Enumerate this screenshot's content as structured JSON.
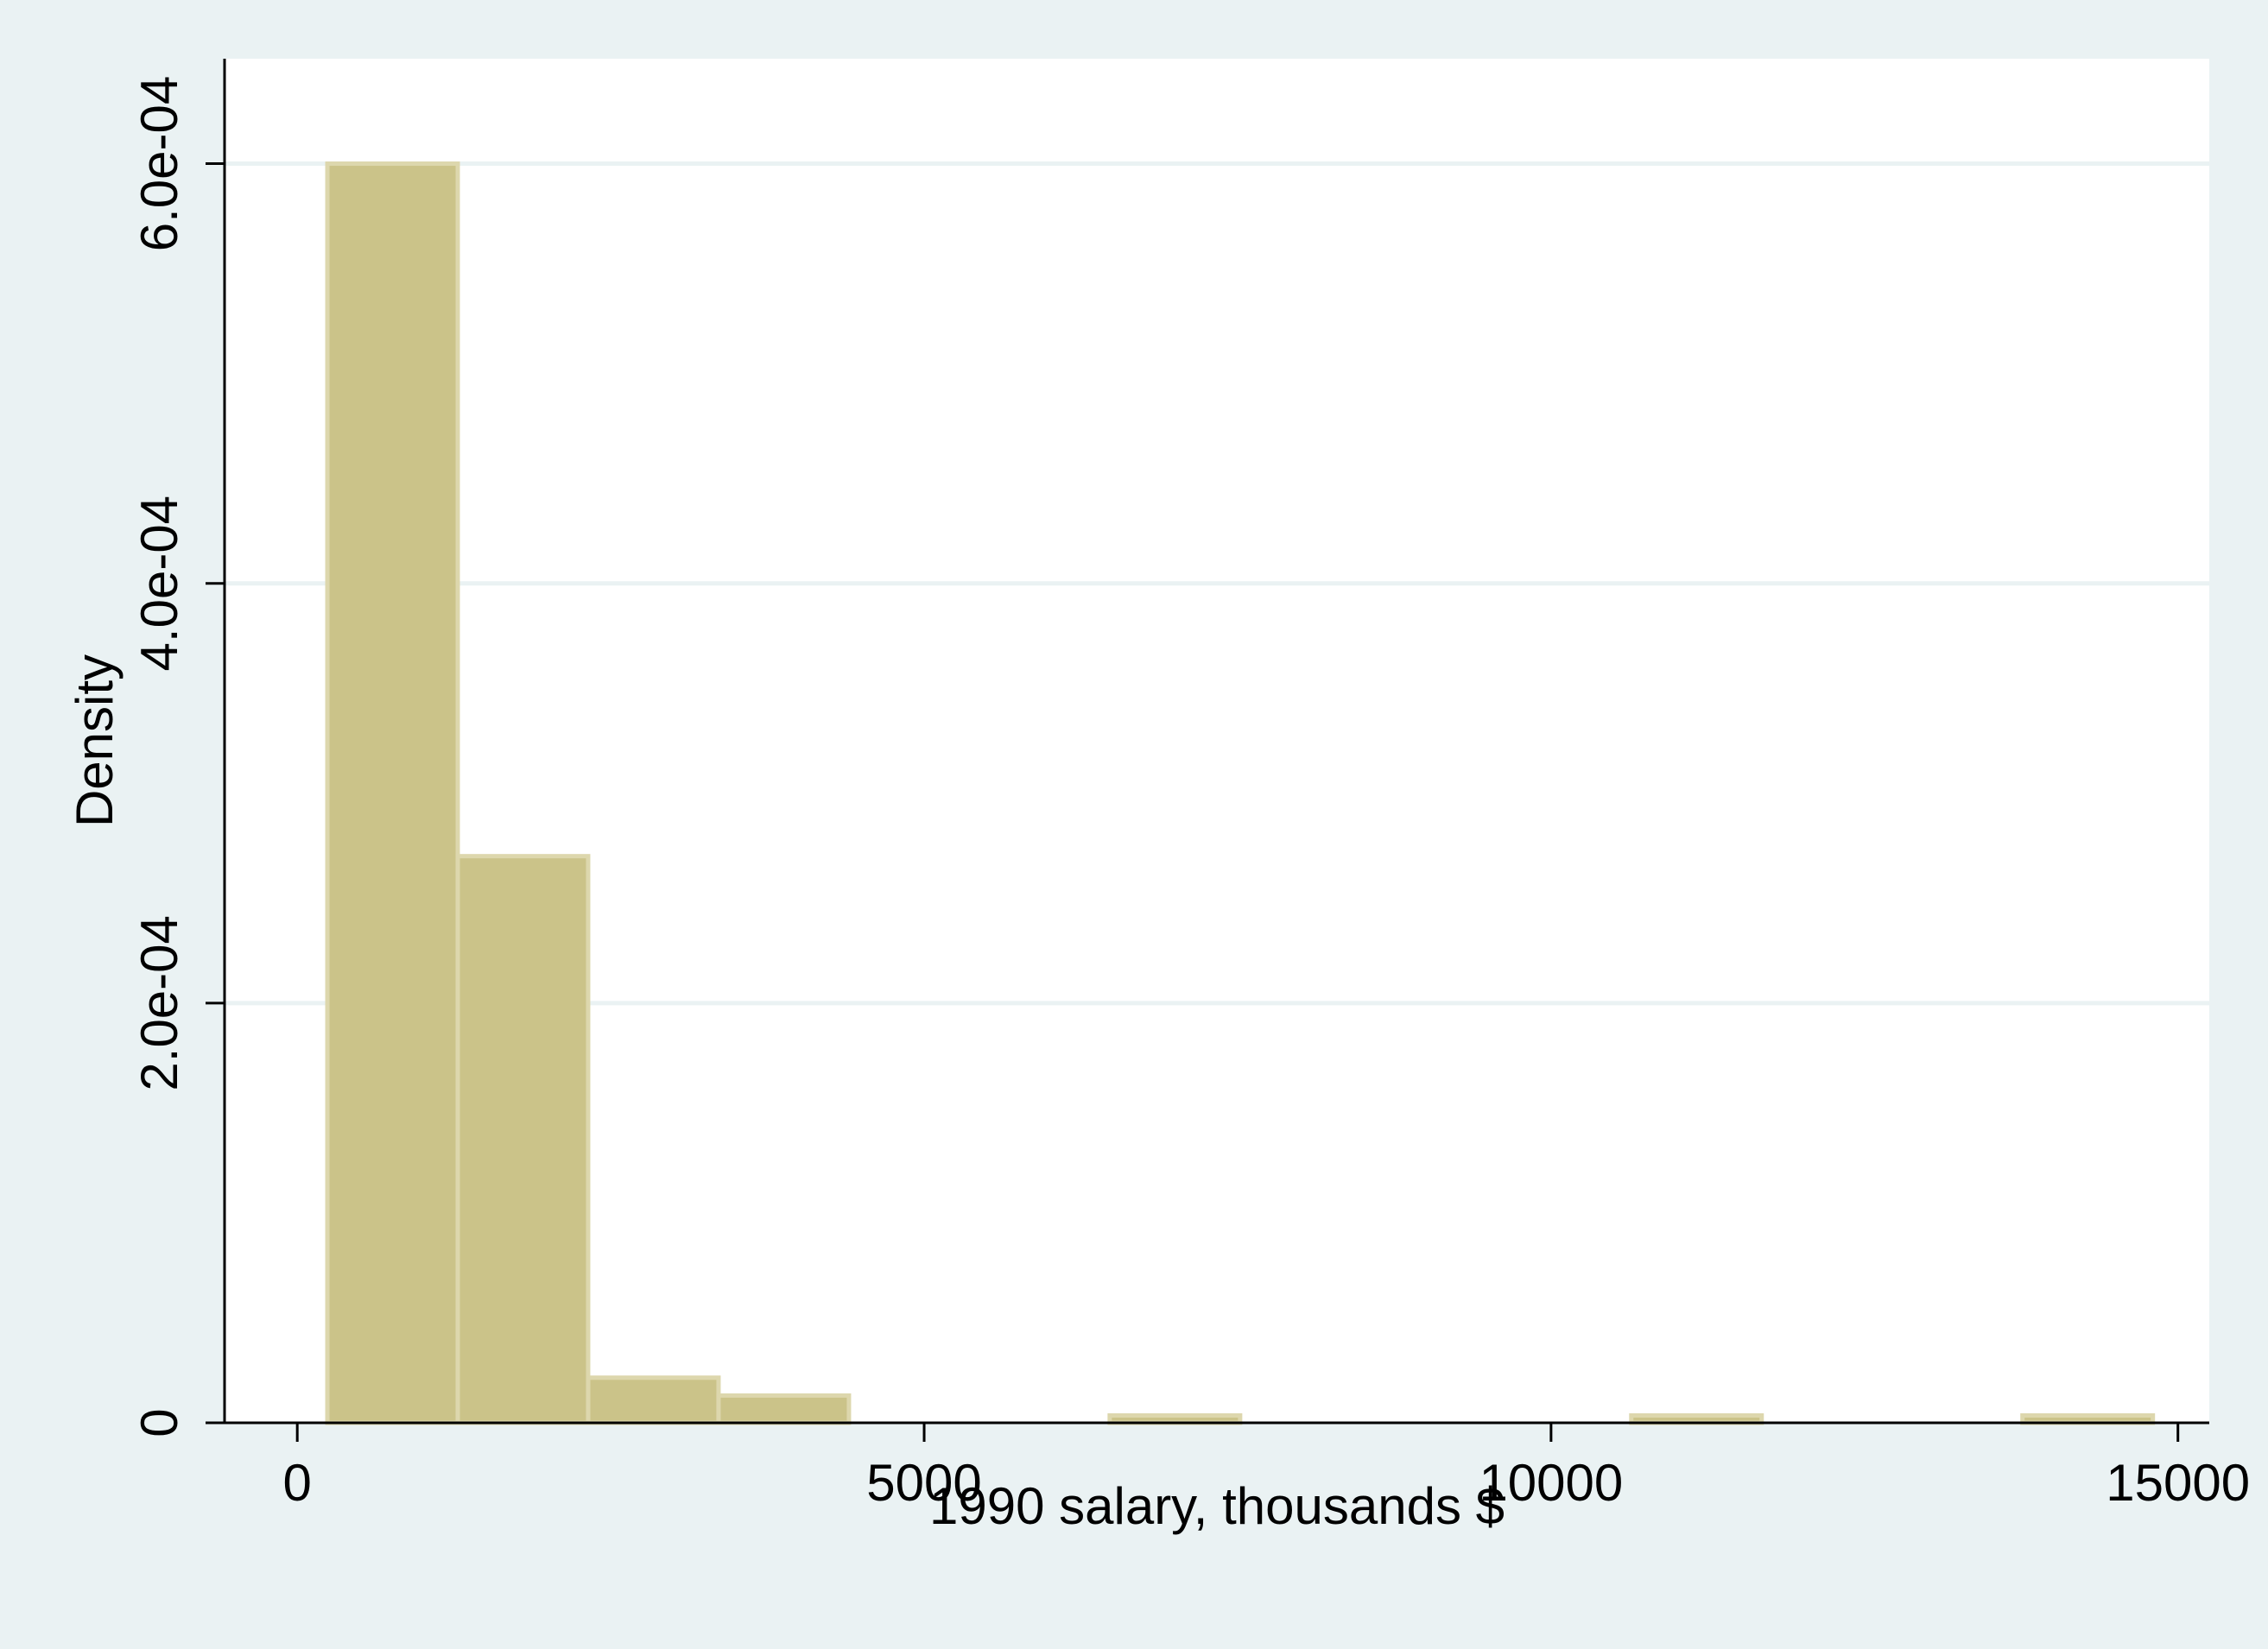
{
  "chart_data": {
    "type": "bar",
    "subtype": "histogram",
    "xlabel": "1990 salary, thousands $",
    "ylabel": "Density",
    "xlim": [
      -580,
      15250
    ],
    "ylim": [
      0,
      0.00065
    ],
    "xticks": [
      {
        "value": 0,
        "label": "0"
      },
      {
        "value": 5000,
        "label": "5000"
      },
      {
        "value": 10000,
        "label": "10000"
      },
      {
        "value": 15000,
        "label": "15000"
      }
    ],
    "yticks": [
      {
        "value": 0,
        "label": "0"
      },
      {
        "value": 0.0002,
        "label": "2.0e-04"
      },
      {
        "value": 0.0004,
        "label": "4.0e-04"
      },
      {
        "value": 0.0006,
        "label": "6.0e-04"
      }
    ],
    "grid": true,
    "bar_color": "#cbc389",
    "bar_edge_color": "#ddd7ad",
    "bins": [
      {
        "x0": 240,
        "x1": 1280,
        "density": 0.0006
      },
      {
        "x0": 1280,
        "x1": 2320,
        "density": 0.00027
      },
      {
        "x0": 2320,
        "x1": 3360,
        "density": 2.15e-05
      },
      {
        "x0": 3360,
        "x1": 4400,
        "density": 1.3e-05
      },
      {
        "x0": 4400,
        "x1": 5440,
        "density": 0
      },
      {
        "x0": 5440,
        "x1": 6480,
        "density": 0
      },
      {
        "x0": 6480,
        "x1": 7520,
        "density": 3.5e-06
      },
      {
        "x0": 7520,
        "x1": 8560,
        "density": 0
      },
      {
        "x0": 8560,
        "x1": 9600,
        "density": 0
      },
      {
        "x0": 9600,
        "x1": 10640,
        "density": 0
      },
      {
        "x0": 10640,
        "x1": 11680,
        "density": 3.5e-06
      },
      {
        "x0": 11680,
        "x1": 12720,
        "density": 0
      },
      {
        "x0": 12720,
        "x1": 13760,
        "density": 0
      },
      {
        "x0": 13760,
        "x1": 14800,
        "density": 3.5e-06
      }
    ]
  }
}
